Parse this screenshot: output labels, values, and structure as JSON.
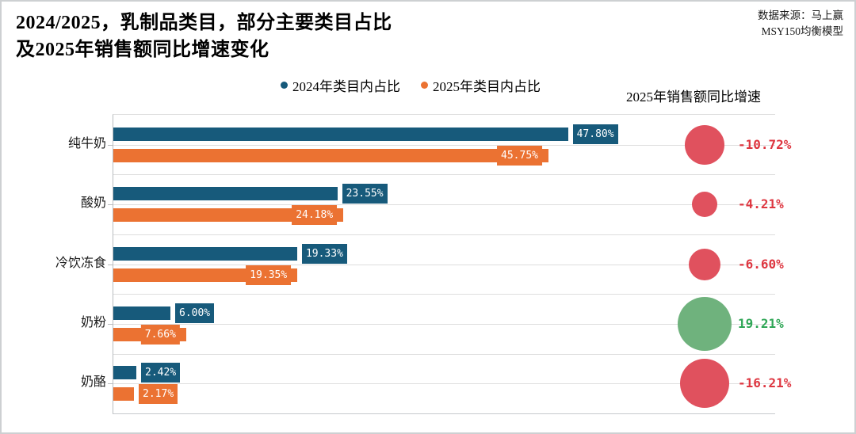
{
  "title": {
    "line1": "2024/2025，乳制品类目，部分主要类目占比",
    "line2": "及2025年销售额同比增速变化"
  },
  "source": {
    "line1": "数据来源：马上赢",
    "line2": "MSY150均衡模型"
  },
  "legend": {
    "items": [
      {
        "label": "2024年类目内占比",
        "color": "#175A7B"
      },
      {
        "label": "2025年类目内占比",
        "color": "#EB7232"
      }
    ]
  },
  "growth_header": "2025年销售额同比增速",
  "chart_data": {
    "type": "bar",
    "orientation": "horizontal",
    "title": "2024/2025，乳制品类目，部分主要类目占比及2025年销售额同比增速变化",
    "categories": [
      "纯牛奶",
      "酸奶",
      "冷饮冻食",
      "奶粉",
      "奶酪"
    ],
    "series": [
      {
        "name": "2024年类目内占比",
        "color": "#175A7B",
        "values": [
          47.8,
          23.55,
          19.33,
          6.0,
          2.42
        ],
        "labels": [
          "47.80%",
          "23.55%",
          "19.33%",
          "6.00%",
          "2.42%"
        ]
      },
      {
        "name": "2025年类目内占比",
        "color": "#EB7232",
        "values": [
          45.75,
          24.18,
          19.35,
          7.66,
          2.17
        ],
        "labels": [
          "45.75%",
          "24.18%",
          "19.35%",
          "7.66%",
          "2.17%"
        ]
      }
    ],
    "bubbles": {
      "name": "2025年销售额同比增速",
      "values": [
        -10.72,
        -4.21,
        -6.6,
        19.21,
        -16.21
      ],
      "labels": [
        "-10.72%",
        "-4.21%",
        "-6.60%",
        "19.21%",
        "-16.21%"
      ],
      "positive_color": "#6FB27D",
      "negative_color": "#E0515E",
      "positive_text_color": "#2FA656",
      "negative_text_color": "#DE3640"
    },
    "xlim": [
      0,
      69.6
    ],
    "grid": true,
    "legend_position": "top"
  }
}
